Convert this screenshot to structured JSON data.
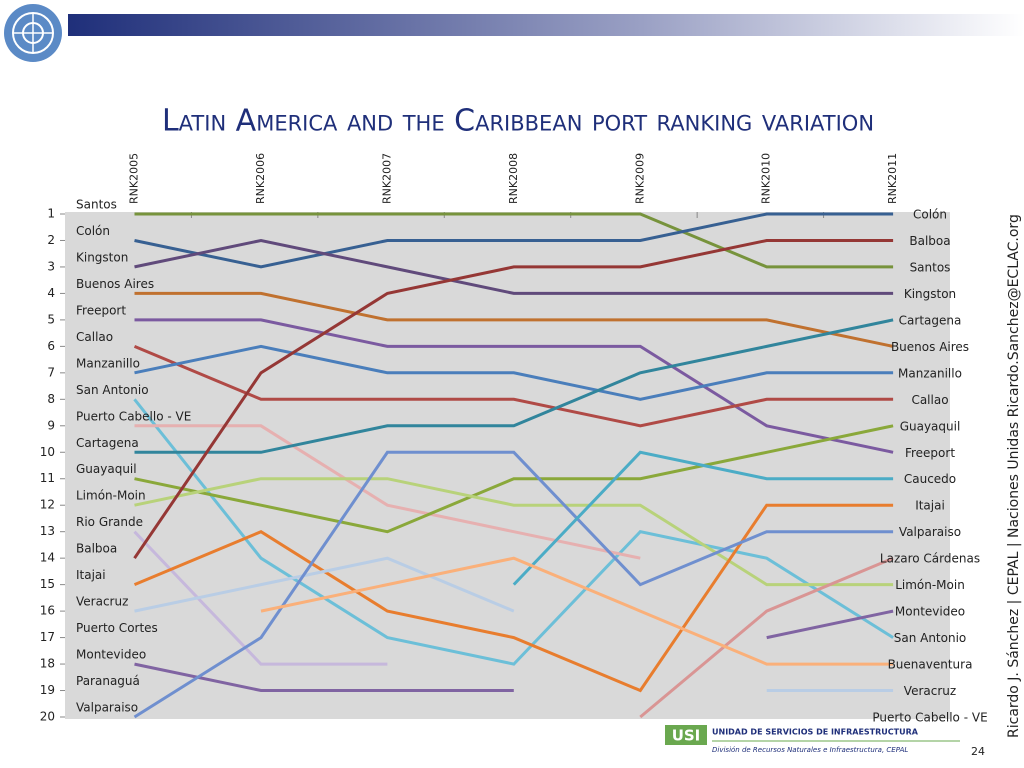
{
  "chart_data": {
    "type": "bump",
    "title": "Latin America and the Caribbean port ranking variation",
    "categories": [
      "RNK2005",
      "RNK2006",
      "RNK2007",
      "RNK2008",
      "RNK2009",
      "RNK2010",
      "RNK2011"
    ],
    "ylim": [
      1,
      20
    ],
    "yticks": [
      1,
      2,
      3,
      4,
      5,
      6,
      7,
      8,
      9,
      10,
      11,
      12,
      13,
      14,
      15,
      16,
      17,
      18,
      19,
      20
    ],
    "y_inverted": true,
    "series": [
      {
        "name": "Santos",
        "color": "#77933c",
        "values": [
          1,
          1,
          1,
          1,
          1,
          3,
          3
        ]
      },
      {
        "name": "Colón",
        "color": "#376092",
        "values": [
          2,
          3,
          2,
          2,
          2,
          1,
          1
        ]
      },
      {
        "name": "Kingston",
        "color": "#604a7b",
        "values": [
          3,
          2,
          3,
          4,
          4,
          4,
          4
        ]
      },
      {
        "name": "Buenos Aires",
        "color": "#c0712f",
        "values": [
          4,
          4,
          5,
          5,
          5,
          5,
          6
        ]
      },
      {
        "name": "Freeport",
        "color": "#7b5aa0",
        "values": [
          5,
          5,
          6,
          6,
          6,
          9,
          10
        ]
      },
      {
        "name": "Callao",
        "color": "#b04a46",
        "values": [
          6,
          8,
          8,
          8,
          9,
          8,
          8
        ]
      },
      {
        "name": "Manzanillo",
        "color": "#4a7ebb",
        "values": [
          7,
          6,
          7,
          7,
          8,
          7,
          7
        ]
      },
      {
        "name": "San Antonio",
        "color": "#6cbfd8",
        "values": [
          8,
          14,
          17,
          18,
          13,
          14,
          17
        ]
      },
      {
        "name": "Puerto Cabello - VE",
        "color": "#e6b0b0",
        "values": [
          9,
          9,
          12,
          13,
          14,
          null,
          20
        ]
      },
      {
        "name": "Cartagena",
        "color": "#31859c",
        "values": [
          10,
          10,
          9,
          9,
          7,
          6,
          5
        ]
      },
      {
        "name": "Guayaquil",
        "color": "#8aa83a",
        "values": [
          11,
          12,
          13,
          11,
          11,
          10,
          9
        ]
      },
      {
        "name": "Limón-Moin",
        "color": "#b8d27a",
        "values": [
          12,
          11,
          11,
          12,
          12,
          15,
          15
        ]
      },
      {
        "name": "Rio Grande",
        "color": "#c6b8dc",
        "values": [
          13,
          18,
          18,
          null,
          null,
          null,
          null
        ]
      },
      {
        "name": "Balboa",
        "color": "#953735",
        "values": [
          14,
          7,
          4,
          3,
          3,
          2,
          2
        ]
      },
      {
        "name": "Itajai",
        "color": "#e87d2e",
        "values": [
          15,
          13,
          16,
          17,
          19,
          12,
          12
        ]
      },
      {
        "name": "Veracruz",
        "color": "#b9cde5",
        "values": [
          16,
          15,
          14,
          16,
          null,
          19,
          19
        ]
      },
      {
        "name": "Puerto Cortes",
        "color": "#b7dee8",
        "values": [
          17,
          null,
          null,
          null,
          null,
          null,
          null
        ]
      },
      {
        "name": "Montevideo",
        "color": "#8064a2",
        "values": [
          18,
          19,
          19,
          19,
          null,
          17,
          16
        ]
      },
      {
        "name": "Paranaguá",
        "color": "#d7e4bd",
        "values": [
          19,
          null,
          null,
          null,
          null,
          null,
          null
        ]
      },
      {
        "name": "Valparaiso",
        "color": "#6f8fcf",
        "values": [
          20,
          17,
          10,
          10,
          15,
          13,
          13
        ]
      },
      {
        "name": "Caucedo",
        "color": "#4bacc6",
        "values": [
          null,
          null,
          null,
          15,
          10,
          11,
          11
        ]
      },
      {
        "name": "Lazaro Cárdenas",
        "color": "#d99594",
        "values": [
          null,
          null,
          null,
          null,
          20,
          16,
          14
        ]
      },
      {
        "name": "Buenaventura",
        "color": "#fab07a",
        "values": [
          null,
          16,
          15,
          14,
          16,
          18,
          18
        ]
      }
    ]
  },
  "side_text": "Ricardo J. Sánchez | CEPAL | Naciones Unidas   Ricardo.Sanchez@ECLAC.org",
  "footer": {
    "logo": "USI",
    "unit": "UNIDAD DE SERVICIOS DE INFRAESTRUCTURA",
    "division": "División de Recursos Naturales e Infraestructura, CEPAL",
    "page": "24"
  }
}
